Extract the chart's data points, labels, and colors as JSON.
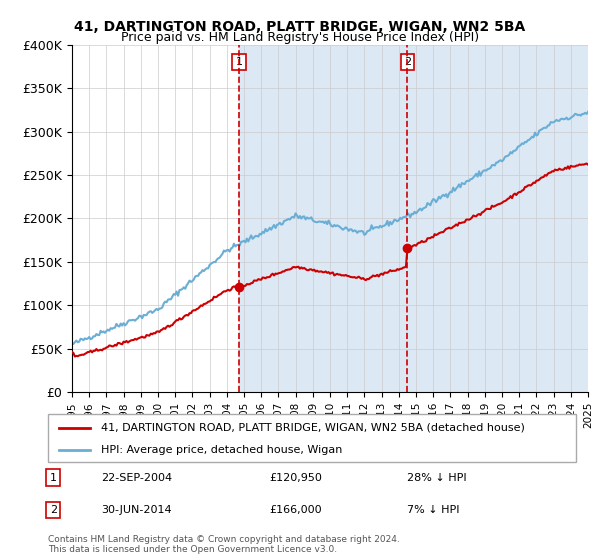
{
  "title1": "41, DARTINGTON ROAD, PLATT BRIDGE, WIGAN, WN2 5BA",
  "title2": "Price paid vs. HM Land Registry's House Price Index (HPI)",
  "legend_line1": "41, DARTINGTON ROAD, PLATT BRIDGE, WIGAN, WN2 5BA (detached house)",
  "legend_line2": "HPI: Average price, detached house, Wigan",
  "annotation1_label": "1",
  "annotation1_date": "22-SEP-2004",
  "annotation1_price": "£120,950",
  "annotation1_hpi": "28% ↓ HPI",
  "annotation2_label": "2",
  "annotation2_date": "30-JUN-2014",
  "annotation2_price": "£166,000",
  "annotation2_hpi": "7% ↓ HPI",
  "footnote": "Contains HM Land Registry data © Crown copyright and database right 2024.\nThis data is licensed under the Open Government Licence v3.0.",
  "sale1_year": 2004.72,
  "sale1_value": 120950,
  "sale2_year": 2014.5,
  "sale2_value": 166000,
  "hpi_color": "#6aaed6",
  "sale_color": "#cc0000",
  "bg_color": "#dce9f5",
  "plot_bg": "#ffffff",
  "ylim_min": 0,
  "ylim_max": 400000,
  "yticks": [
    0,
    50000,
    100000,
    150000,
    200000,
    250000,
    300000,
    350000,
    400000
  ],
  "ylabel_format": "£{0}K",
  "xmin": 1995,
  "xmax": 2025
}
